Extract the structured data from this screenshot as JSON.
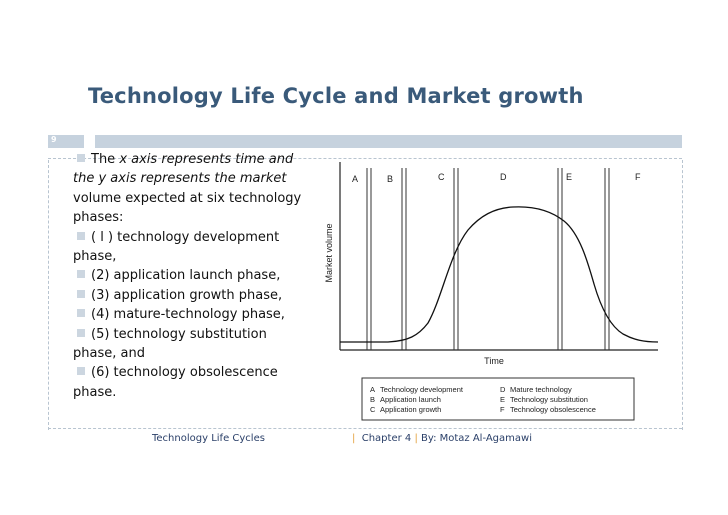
{
  "slide": {
    "title": "Technology Life Cycle and Market growth",
    "number": "9"
  },
  "bullets": [
    {
      "pre": "The ",
      "em": "x axis represents time and the y axis represents the market",
      "post": " volume expected at six technology phases:"
    },
    {
      "text": "( l ) technology development phase,"
    },
    {
      "text": "(2) application launch phase,"
    },
    {
      "text": "(3) application growth phase,"
    },
    {
      "text": "(4) mature-technology phase,"
    },
    {
      "text": "(5) technology substitution phase, and"
    },
    {
      "text": "(6) technology obsolescence phase."
    }
  ],
  "figure": {
    "ylabel": "Market volume",
    "xlabel": "Time",
    "phases": [
      "A",
      "B",
      "C",
      "D",
      "E",
      "F"
    ],
    "legend": [
      [
        "A",
        "Technology development"
      ],
      [
        "B",
        "Application launch"
      ],
      [
        "C",
        "Application growth"
      ],
      [
        "D",
        "Mature technology"
      ],
      [
        "E",
        "Technology substitution"
      ],
      [
        "F",
        "Technology obsolescence"
      ]
    ]
  },
  "footer": {
    "left": "Technology Life Cycles",
    "chapter": "Chapter 4",
    "author": "By: Motaz Al-Agamawi",
    "pipe": "|"
  }
}
